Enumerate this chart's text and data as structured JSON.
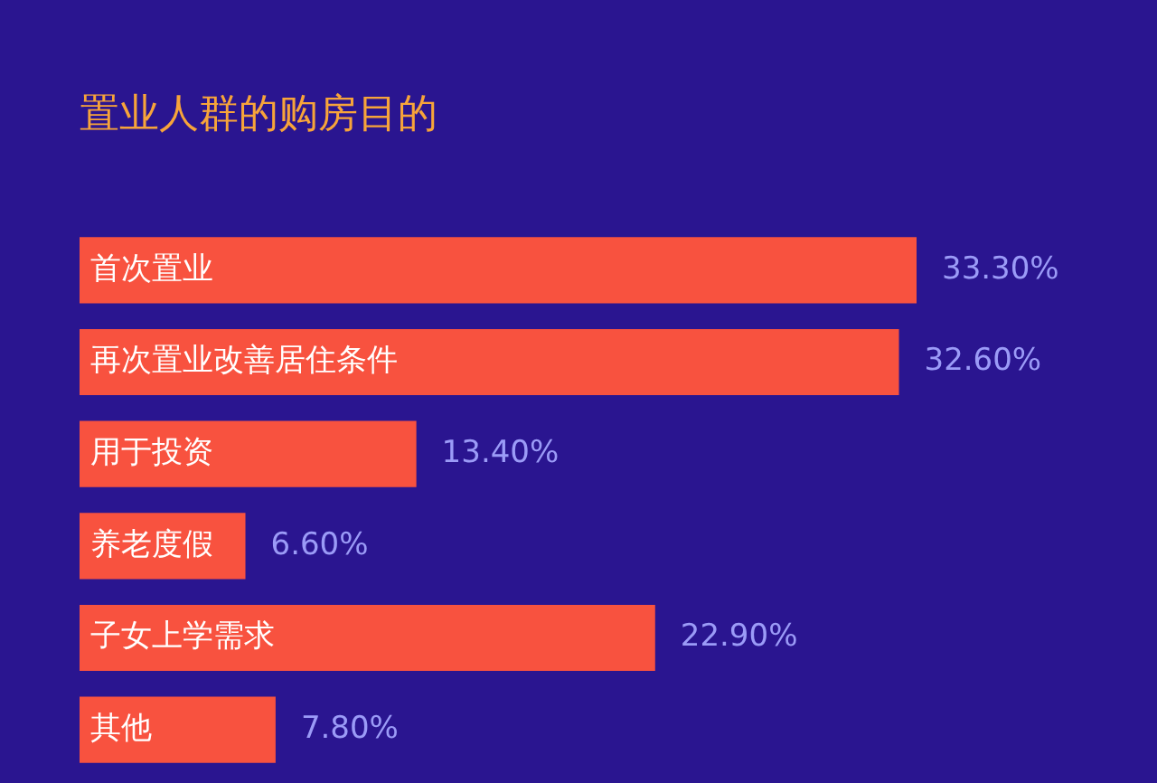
{
  "chart_data": {
    "type": "bar",
    "orientation": "horizontal",
    "title": "置业人群的购房目的",
    "categories": [
      "首次置业",
      "再次置业改善居住条件",
      "用于投资",
      "养老度假",
      "子女上学需求",
      "其他"
    ],
    "values": [
      33.3,
      32.6,
      13.4,
      6.6,
      22.9,
      7.8
    ],
    "value_labels": [
      "33.30%",
      "32.60%",
      "13.40%",
      "6.60%",
      "22.90%",
      "7.80%"
    ],
    "color": "#f8523f"
  }
}
